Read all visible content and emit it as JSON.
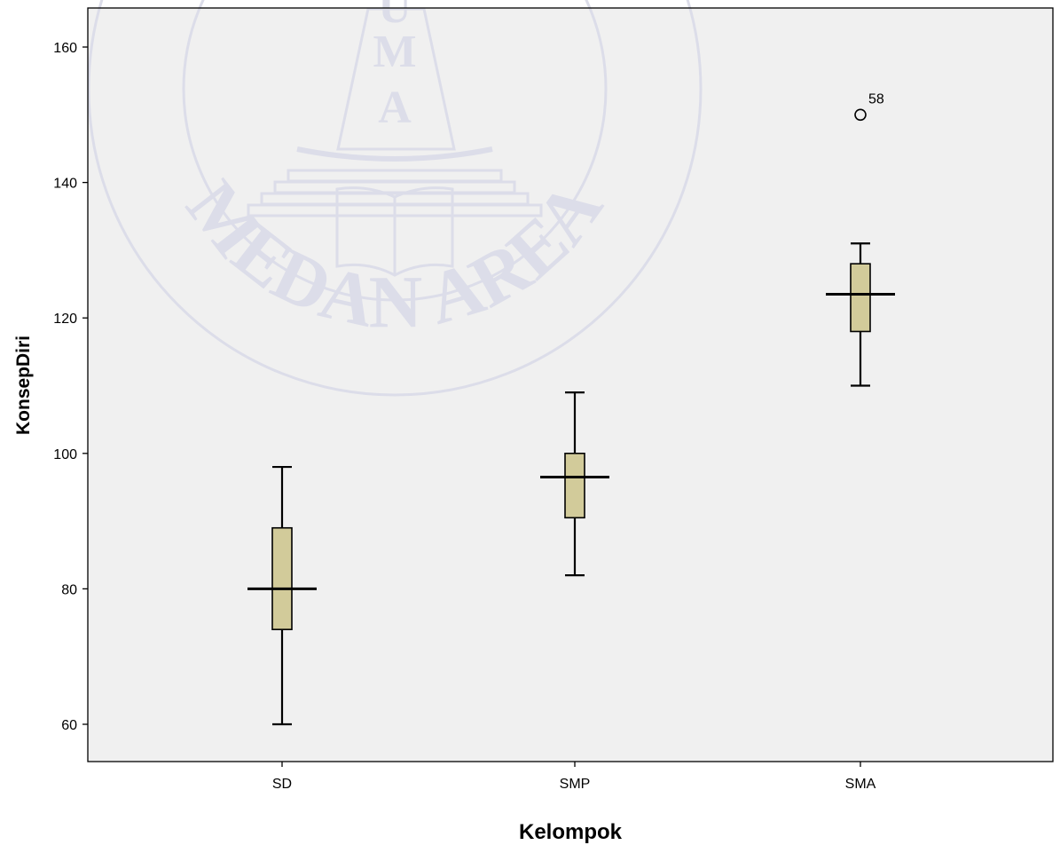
{
  "chart_data": {
    "type": "boxplot",
    "xlabel": "Kelompok",
    "ylabel": "KonsepDiri",
    "ylim": [
      54,
      165
    ],
    "yticks": [
      60,
      80,
      100,
      120,
      140,
      160
    ],
    "categories": [
      "SD",
      "SMP",
      "SMA"
    ],
    "boxes": [
      {
        "category": "SD",
        "min": 60,
        "q1": 74,
        "median": 80,
        "q3": 89,
        "max": 98
      },
      {
        "category": "SMP",
        "min": 82,
        "q1": 90.5,
        "median": 96.5,
        "q3": 100,
        "max": 109
      },
      {
        "category": "SMA",
        "min": 110,
        "q1": 118,
        "median": 123.5,
        "q3": 128,
        "max": 131
      }
    ],
    "outliers": [
      {
        "category": "SMA",
        "value": 150,
        "label": "58"
      }
    ],
    "box_fill": "#d2cb9a",
    "plot_background": "#f0f0f0",
    "grid": false
  },
  "watermark": {
    "letters": "UMA",
    "text": "MEDAN AREA",
    "color": "#dcdde9"
  }
}
